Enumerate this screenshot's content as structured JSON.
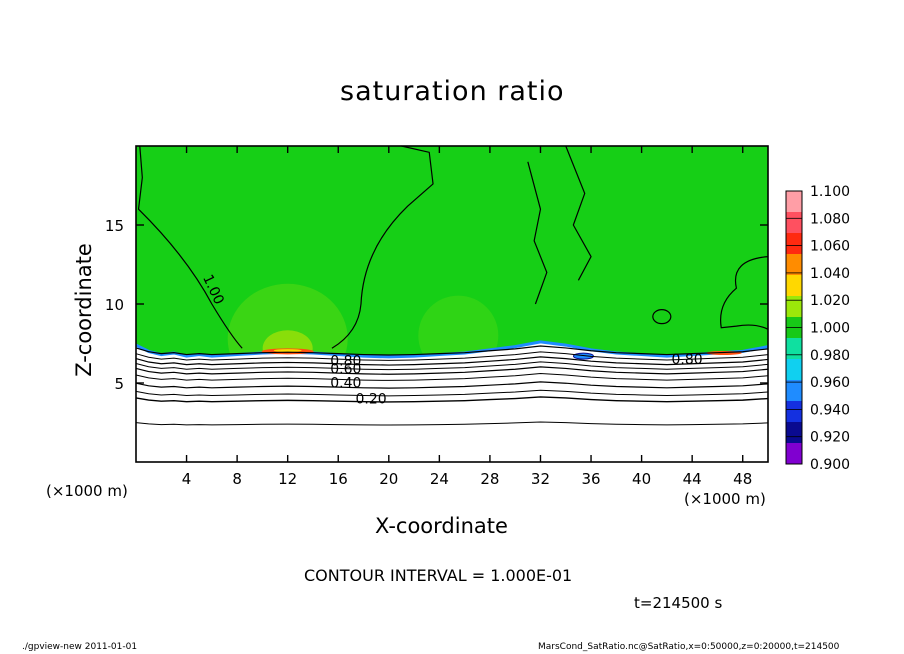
{
  "chart_data": {
    "type": "heatmap",
    "title": "saturation ratio",
    "xlabel": "X-coordinate",
    "ylabel": "Z-coordinate",
    "x_unit_label": "(×1000 m)",
    "xlim": [
      0,
      50
    ],
    "ylim": [
      0,
      20
    ],
    "x_ticks": [
      "4",
      "8",
      "12",
      "16",
      "20",
      "24",
      "28",
      "32",
      "36",
      "40",
      "44",
      "48"
    ],
    "y_ticks": [
      "5",
      "10",
      "15"
    ],
    "colorbar": {
      "levels": [
        "1.100",
        "1.080",
        "1.060",
        "1.040",
        "1.020",
        "1.000",
        "0.980",
        "0.960",
        "0.940",
        "0.920",
        "0.900"
      ],
      "colors": [
        "#ff9ea6",
        "#ff5060",
        "#ff2a10",
        "#ff8c00",
        "#ffd800",
        "#9be80a",
        "#17c917",
        "#0fe0a0",
        "#10d0f0",
        "#1f8cff",
        "#1430e0",
        "#0a0a90",
        "#8000d0"
      ]
    },
    "contour_labels": [
      "0.20",
      "0.40",
      "0.60",
      "0.80",
      "0.80",
      "1.00"
    ],
    "contour_interval_text": "CONTOUR INTERVAL = 1.000E-01",
    "time_text": "t=214500 s",
    "field_colors": {
      "background": "#16cf16",
      "subsaturated": "#ffffff",
      "interface": "#1f8cff",
      "supersaturated": "#ff5010"
    }
  },
  "footer": {
    "left": "./gpview-new   2011-01-01",
    "right": "MarsCond_SatRatio.nc@SatRatio,x=0:50000,z=0:20000,t=214500"
  }
}
